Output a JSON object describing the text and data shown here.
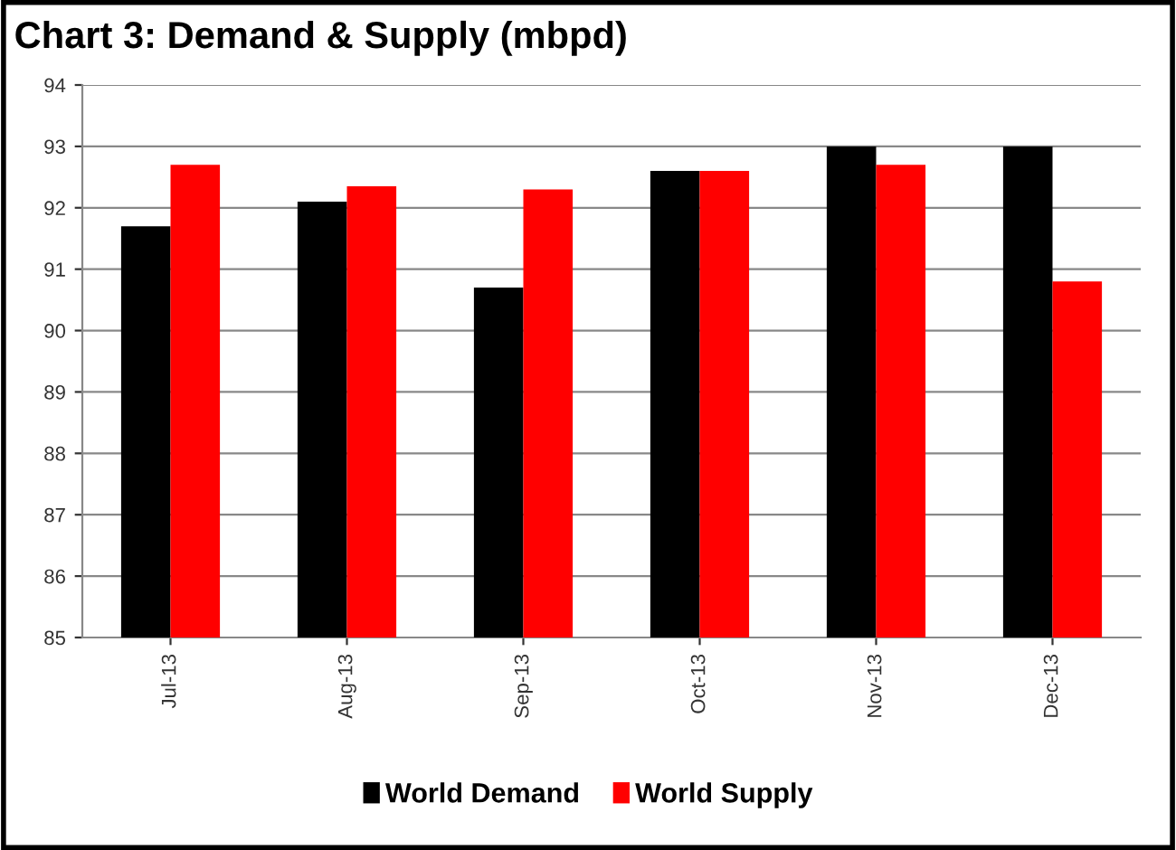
{
  "chart_data": {
    "type": "bar",
    "title": "Chart 3: Demand & Supply (mbpd)",
    "categories": [
      "Jul-13",
      "Aug-13",
      "Sep-13",
      "Oct-13",
      "Nov-13",
      "Dec-13"
    ],
    "series": [
      {
        "name": "World Demand",
        "color": "#000000",
        "values": [
          91.7,
          92.1,
          90.7,
          92.6,
          93.0,
          93.0
        ]
      },
      {
        "name": "World Supply",
        "color": "#ff0000",
        "values": [
          92.7,
          92.35,
          92.3,
          92.6,
          92.7,
          90.8
        ]
      }
    ],
    "ylim": [
      85,
      94
    ],
    "yticks": [
      85,
      86,
      87,
      88,
      89,
      90,
      91,
      92,
      93,
      94
    ],
    "grid": "y",
    "legend": "bottom"
  }
}
